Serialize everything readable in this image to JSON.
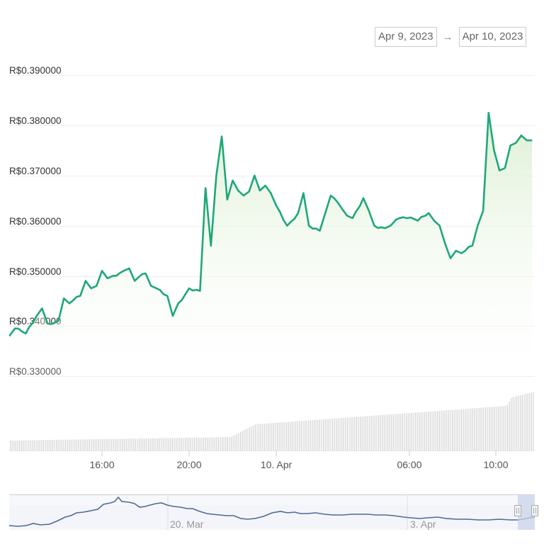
{
  "date_range": {
    "from": "Apr 9, 2023",
    "separator": "→",
    "to": "Apr 10, 2023"
  },
  "colors": {
    "price_line": "#1fa77a",
    "area_fill_top": "#e2f2da",
    "volume_bar": "#d4d4d4",
    "navigator_line": "#4f6a91",
    "navigator_mask": "#c9d3ea"
  },
  "navigator": {
    "labels": [
      "20. Mar",
      "3. Apr"
    ],
    "handles": [
      "left-handle",
      "right-handle"
    ]
  },
  "chart_data": {
    "type": "line",
    "title": "",
    "xlabel": "",
    "ylabel": "",
    "currency": "R$",
    "y_ticks": [
      "R$0.390000",
      "R$0.380000",
      "R$0.370000",
      "R$0.360000",
      "R$0.350000",
      "R$0.340000",
      "R$0.330000"
    ],
    "ylim": [
      0.33,
      0.39
    ],
    "x_ticks": [
      "16:00",
      "20:00",
      "10. Apr",
      "06:00",
      "10:00"
    ],
    "x_range": [
      "Apr 9, 2023 ~11:45",
      "Apr 10, 2023 ~11:45"
    ],
    "grid": true,
    "series": [
      {
        "name": "Price",
        "x": [
          "11:45",
          "12:00",
          "12:30",
          "13:00",
          "13:15",
          "13:30",
          "14:00",
          "14:15",
          "14:30",
          "15:00",
          "15:15",
          "15:30",
          "15:45",
          "16:00",
          "16:15",
          "16:30",
          "17:00",
          "17:15",
          "17:30",
          "18:00",
          "18:15",
          "18:30",
          "19:00",
          "19:15",
          "19:30",
          "20:00",
          "20:30",
          "20:45",
          "21:00",
          "21:15",
          "21:30",
          "21:45",
          "22:00",
          "22:15",
          "22:30",
          "22:45",
          "23:00",
          "23:15",
          "23:30",
          "23:45",
          "00:00",
          "00:30",
          "01:00",
          "01:15",
          "01:30",
          "02:00",
          "02:15",
          "02:30",
          "03:00",
          "03:15",
          "03:30",
          "04:00",
          "04:15",
          "04:30",
          "05:00",
          "05:15",
          "05:30",
          "06:00",
          "06:30",
          "07:00",
          "07:15",
          "07:30",
          "08:00",
          "08:15",
          "08:30",
          "09:00",
          "09:15",
          "09:30",
          "09:45",
          "10:00",
          "10:15",
          "10:30",
          "10:45",
          "11:00",
          "11:15",
          "11:30",
          "11:45"
        ],
        "values": [
          0.338,
          0.3395,
          0.3385,
          0.342,
          0.3435,
          0.3405,
          0.341,
          0.3455,
          0.3445,
          0.346,
          0.349,
          0.3475,
          0.348,
          0.351,
          0.3495,
          0.35,
          0.351,
          0.3515,
          0.349,
          0.3505,
          0.348,
          0.3475,
          0.346,
          0.342,
          0.3445,
          0.3475,
          0.347,
          0.3675,
          0.356,
          0.37,
          0.3778,
          0.3652,
          0.369,
          0.367,
          0.366,
          0.3668,
          0.37,
          0.367,
          0.368,
          0.3665,
          0.364,
          0.36,
          0.3625,
          0.3665,
          0.36,
          0.359,
          0.3625,
          0.366,
          0.3635,
          0.362,
          0.3615,
          0.3655,
          0.363,
          0.36,
          0.3595,
          0.36,
          0.3612,
          0.3615,
          0.361,
          0.3625,
          0.361,
          0.36,
          0.3535,
          0.355,
          0.3545,
          0.356,
          0.36,
          0.363,
          0.3825,
          0.375,
          0.371,
          0.3715,
          0.376,
          0.3765,
          0.378,
          0.377,
          0.377
        ]
      },
      {
        "name": "Volume",
        "type": "bar",
        "relative_heights": "flat from 11:45 to ~22:15, rises gradually through Apr 10, with a step up near 10:20, highest at the end"
      }
    ]
  }
}
